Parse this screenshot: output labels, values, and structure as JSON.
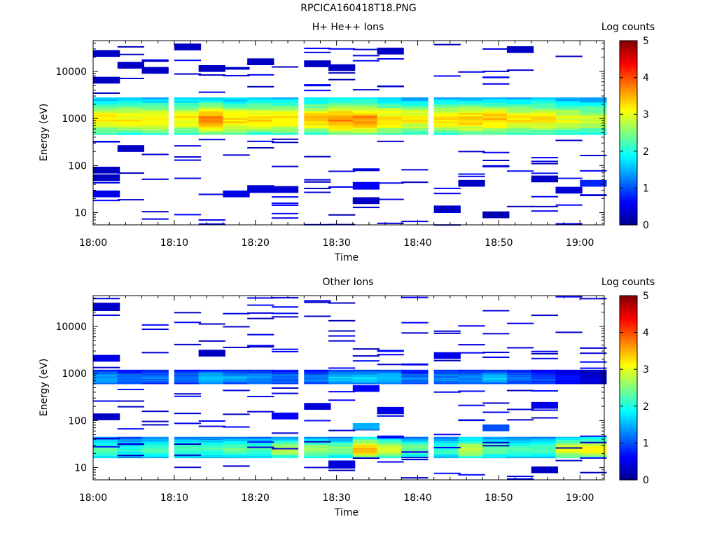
{
  "title": "RPCICA160418T18.PNG",
  "colormap": [
    "#00008f",
    "#0000ff",
    "#0080ff",
    "#00ffff",
    "#80ff80",
    "#ffff00",
    "#ff8000",
    "#ff0000",
    "#800000"
  ],
  "chart_data": [
    {
      "type": "heatmap",
      "title": "H+ He++ Ions",
      "xlabel": "Time",
      "ylabel": "Energy (eV)",
      "yscale": "log",
      "ylim": [
        5.5,
        45000
      ],
      "xlim": [
        "18:00",
        "19:03"
      ],
      "xticks": [
        "18:00",
        "18:10",
        "18:20",
        "18:30",
        "18:40",
        "18:50",
        "19:00"
      ],
      "yticks": [
        "10",
        "100",
        "1000",
        "10000"
      ],
      "colorbar": {
        "label": "Log counts",
        "min": 0,
        "max": 5,
        "ticks": [
          "0",
          "1",
          "2",
          "3",
          "4",
          "5"
        ]
      },
      "bins_time_start": [
        "18:00",
        "18:03",
        "18:06",
        "18:10",
        "18:13",
        "18:16",
        "18:19",
        "18:22",
        "18:26",
        "18:29",
        "18:32",
        "18:35",
        "18:38",
        "18:42",
        "18:45",
        "18:48",
        "18:51",
        "18:54",
        "18:57",
        "19:00"
      ],
      "core_band": {
        "energy_range_eV": [
          450,
          2800
        ],
        "peak_log_counts": [
          3.2,
          3.2,
          3.2,
          3.2,
          3.7,
          3.3,
          3.3,
          3.3,
          3.4,
          3.7,
          3.7,
          3.3,
          3.2,
          3.3,
          3.4,
          3.4,
          3.2,
          3.2,
          3.0,
          2.9
        ]
      },
      "sparse_counts": [
        {
          "time": "18:00",
          "energy_eV": 24000,
          "log_counts": 0.3
        },
        {
          "time": "18:00",
          "energy_eV": 6500,
          "log_counts": 0.3
        },
        {
          "time": "18:00",
          "energy_eV": 80,
          "log_counts": 0.3
        },
        {
          "time": "18:00",
          "energy_eV": 55,
          "log_counts": 0.3
        },
        {
          "time": "18:00",
          "energy_eV": 25,
          "log_counts": 0.5
        },
        {
          "time": "18:03",
          "energy_eV": 13500,
          "log_counts": 0.3
        },
        {
          "time": "18:03",
          "energy_eV": 230,
          "log_counts": 0.3
        },
        {
          "time": "18:06",
          "energy_eV": 10500,
          "log_counts": 0.3
        },
        {
          "time": "18:10",
          "energy_eV": 33000,
          "log_counts": 0.3
        },
        {
          "time": "18:13",
          "energy_eV": 11500,
          "log_counts": 0.3
        },
        {
          "time": "18:16",
          "energy_eV": 25,
          "log_counts": 0.5
        },
        {
          "time": "18:19",
          "energy_eV": 16000,
          "log_counts": 0.3
        },
        {
          "time": "18:19",
          "energy_eV": 31,
          "log_counts": 0.4
        },
        {
          "time": "18:22",
          "energy_eV": 31,
          "log_counts": 0.4
        },
        {
          "time": "18:26",
          "energy_eV": 14500,
          "log_counts": 0.3
        },
        {
          "time": "18:29",
          "energy_eV": 12000,
          "log_counts": 0.3
        },
        {
          "time": "18:32",
          "energy_eV": 38,
          "log_counts": 0.6
        },
        {
          "time": "18:32",
          "energy_eV": 18,
          "log_counts": 0.3
        },
        {
          "time": "18:35",
          "energy_eV": 27000,
          "log_counts": 0.3
        },
        {
          "time": "18:42",
          "energy_eV": 12,
          "log_counts": 0.3
        },
        {
          "time": "18:45",
          "energy_eV": 42,
          "log_counts": 0.3
        },
        {
          "time": "18:48",
          "energy_eV": 9,
          "log_counts": 0.2
        },
        {
          "time": "18:51",
          "energy_eV": 29000,
          "log_counts": 0.3
        },
        {
          "time": "18:54",
          "energy_eV": 52,
          "log_counts": 0.3
        },
        {
          "time": "18:57",
          "energy_eV": 30,
          "log_counts": 0.4
        },
        {
          "time": "19:00",
          "energy_eV": 42,
          "log_counts": 0.8
        }
      ]
    },
    {
      "type": "heatmap",
      "title": "Other Ions",
      "xlabel": "Time",
      "ylabel": "Energy (eV)",
      "yscale": "log",
      "ylim": [
        5.5,
        45000
      ],
      "xlim": [
        "18:00",
        "19:03"
      ],
      "xticks": [
        "18:00",
        "18:10",
        "18:20",
        "18:30",
        "18:40",
        "18:50",
        "19:00"
      ],
      "yticks": [
        "10",
        "100",
        "1000",
        "10000"
      ],
      "colorbar": {
        "label": "Log counts",
        "min": 0,
        "max": 5,
        "ticks": [
          "0",
          "1",
          "2",
          "3",
          "4",
          "5"
        ]
      },
      "bins_time_start": [
        "18:00",
        "18:03",
        "18:06",
        "18:10",
        "18:13",
        "18:16",
        "18:19",
        "18:22",
        "18:26",
        "18:29",
        "18:32",
        "18:35",
        "18:38",
        "18:42",
        "18:45",
        "18:48",
        "18:51",
        "18:54",
        "18:57",
        "19:00"
      ],
      "high_band": {
        "energy_range_eV": [
          600,
          1200
        ],
        "peak_log_counts": [
          1.5,
          1.2,
          1.2,
          1.2,
          1.6,
          1.4,
          1.4,
          1.2,
          1.2,
          1.6,
          1.7,
          1.6,
          1.2,
          1.3,
          1.3,
          1.6,
          1.2,
          1.0,
          0.7,
          0.4
        ]
      },
      "low_band": {
        "energy_range_eV": [
          16,
          45
        ],
        "peak_log_counts": [
          2.3,
          2.0,
          2.2,
          2.3,
          2.3,
          2.4,
          2.3,
          2.8,
          2.7,
          2.5,
          3.5,
          3.0,
          2.4,
          2.2,
          2.9,
          2.4,
          2.3,
          2.3,
          3.1,
          3.3
        ]
      },
      "sparse_counts": [
        {
          "time": "18:00",
          "energy_eV": 25000,
          "log_counts": 0.3
        },
        {
          "time": "18:00",
          "energy_eV": 2100,
          "log_counts": 0.5
        },
        {
          "time": "18:00",
          "energy_eV": 120,
          "log_counts": 0.3
        },
        {
          "time": "18:13",
          "energy_eV": 2700,
          "log_counts": 0.3
        },
        {
          "time": "18:22",
          "energy_eV": 125,
          "log_counts": 0.6
        },
        {
          "time": "18:26",
          "energy_eV": 200,
          "log_counts": 0.4
        },
        {
          "time": "18:29",
          "energy_eV": 12,
          "log_counts": 0.4
        },
        {
          "time": "18:32",
          "energy_eV": 480,
          "log_counts": 0.6
        },
        {
          "time": "18:32",
          "energy_eV": 75,
          "log_counts": 1.5
        },
        {
          "time": "18:35",
          "energy_eV": 165,
          "log_counts": 0.5
        },
        {
          "time": "18:42",
          "energy_eV": 2400,
          "log_counts": 0.5
        },
        {
          "time": "18:48",
          "energy_eV": 70,
          "log_counts": 1.0
        },
        {
          "time": "18:54",
          "energy_eV": 210,
          "log_counts": 0.5
        },
        {
          "time": "18:54",
          "energy_eV": 9,
          "log_counts": 0.3
        }
      ]
    }
  ]
}
